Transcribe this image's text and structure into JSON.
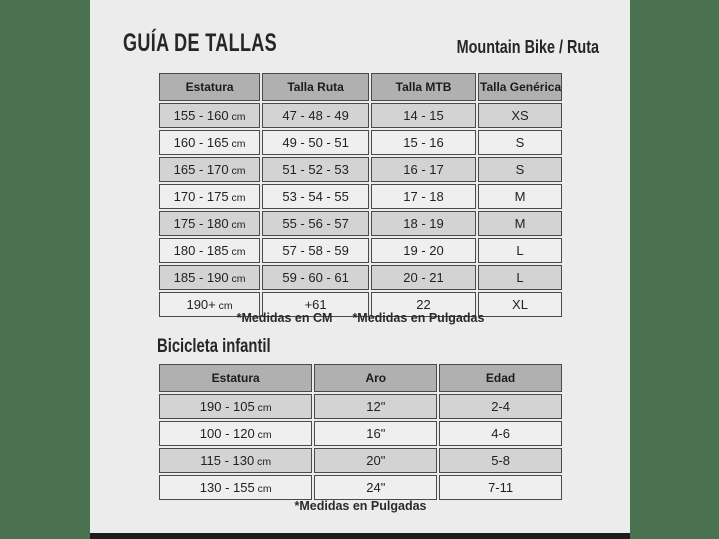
{
  "page": {
    "title": "GUÍA DE TALLAS",
    "subtitle": "Mountain Bike / Ruta",
    "infantil_heading": "Bicicleta infantil"
  },
  "colors": {
    "side_panels_green": "#4a7150",
    "background": "#ececec",
    "table_header_gray": "#b0b0b0",
    "row_dark_gray": "#d3d3d3",
    "row_light_gray": "#efefef",
    "border": "#4a4a4a",
    "bottom_bar": "#1d1d1d"
  },
  "tables": {
    "main": {
      "headers": [
        "Estatura",
        "Talla Ruta",
        "Talla MTB",
        "Talla Genérica"
      ],
      "rows": [
        [
          {
            "value": "155 - 160",
            "unit": "cm"
          },
          "47 - 48 - 49",
          "14 - 15",
          "XS"
        ],
        [
          {
            "value": "160 - 165",
            "unit": "cm"
          },
          "49 - 50 - 51",
          "15 - 16",
          "S"
        ],
        [
          {
            "value": "165 - 170",
            "unit": "cm"
          },
          "51 - 52 - 53",
          "16 - 17",
          "S"
        ],
        [
          {
            "value": "170 - 175",
            "unit": "cm"
          },
          "53 - 54 - 55",
          "17 - 18",
          "M"
        ],
        [
          {
            "value": "175 - 180",
            "unit": "cm"
          },
          "55 - 56 - 57",
          "18 - 19",
          "M"
        ],
        [
          {
            "value": "180 - 185",
            "unit": "cm"
          },
          "57 - 58 - 59",
          "19 - 20",
          "L"
        ],
        [
          {
            "value": "185 - 190",
            "unit": "cm"
          },
          "59 - 60 - 61",
          "20 - 21",
          "L"
        ],
        [
          {
            "value": "190+",
            "unit": "cm"
          },
          "+61",
          "22",
          "XL"
        ]
      ],
      "note_cm": "*Medidas en CM",
      "note_inches": "*Medidas en Pulgadas"
    },
    "infantil": {
      "headers": [
        "Estatura",
        "Aro",
        "Edad"
      ],
      "rows": [
        [
          {
            "value": "190 - 105",
            "unit": "cm"
          },
          "12\"",
          "2-4"
        ],
        [
          {
            "value": "100 - 120",
            "unit": "cm"
          },
          "16\"",
          "4-6"
        ],
        [
          {
            "value": "115 - 130",
            "unit": "cm"
          },
          "20\"",
          "5-8"
        ],
        [
          {
            "value": "130 - 155",
            "unit": "cm"
          },
          "24\"",
          "7-11"
        ]
      ],
      "note_inches": "*Medidas en Pulgadas"
    }
  }
}
